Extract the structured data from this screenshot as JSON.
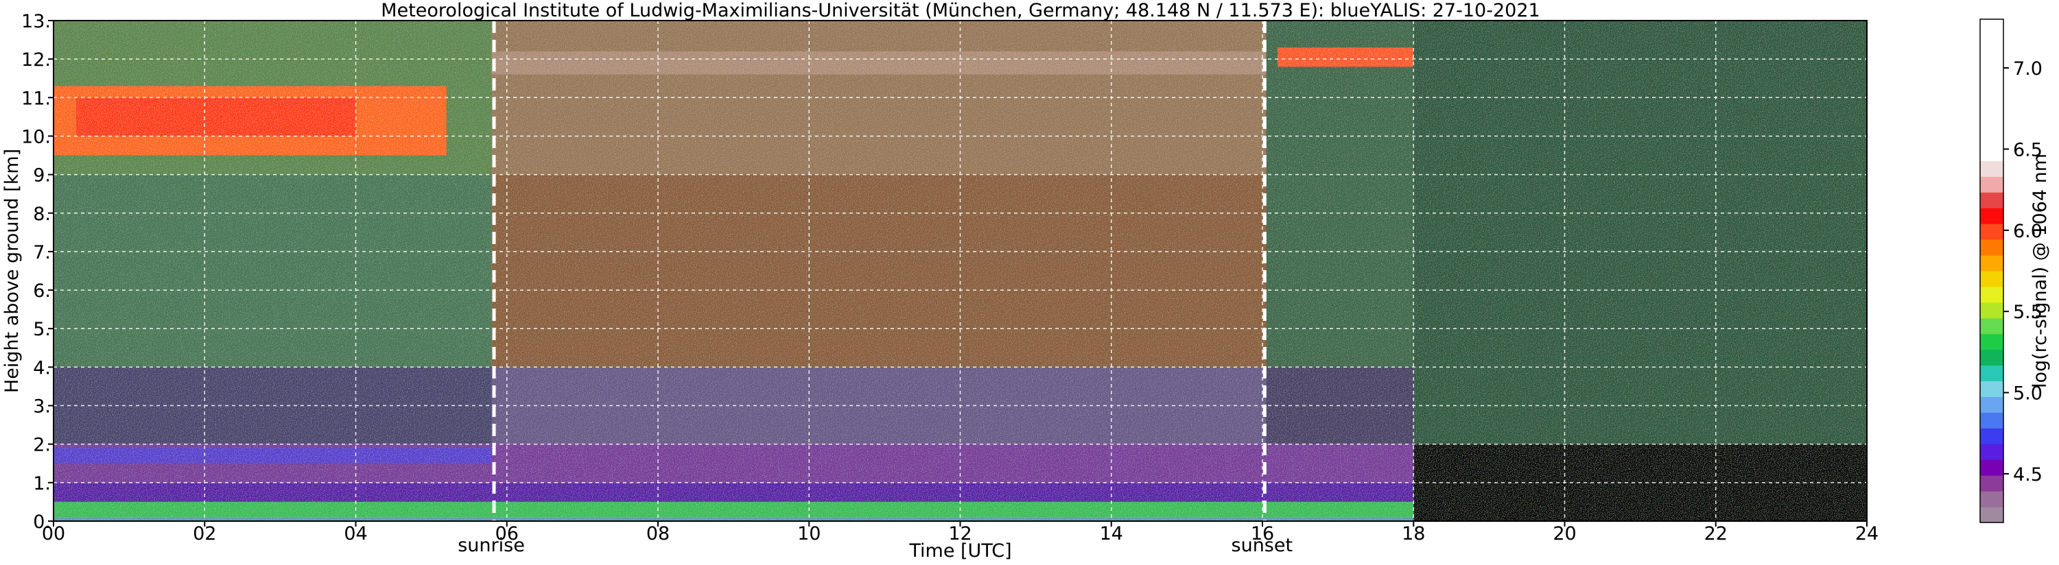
{
  "chart_data": {
    "type": "heatmap",
    "title": "Meteorological Institute of Ludwig-Maximilians-Universität (München, Germany; 48.148 N / 11.573 E):     blueYALIS: 27-10-2021",
    "xlabel": "Time [UTC]",
    "ylabel": "Height above ground [km]",
    "xlim": [
      0,
      24
    ],
    "ylim": [
      0,
      13
    ],
    "x_ticks": [
      0,
      2,
      4,
      6,
      8,
      10,
      12,
      14,
      16,
      18,
      20,
      22,
      24
    ],
    "x_tick_labels": [
      "00",
      "02",
      "04",
      "06",
      "08",
      "10",
      "12",
      "14",
      "16",
      "18",
      "20",
      "22",
      "24"
    ],
    "y_ticks": [
      0,
      1,
      2,
      3,
      4,
      5,
      6,
      7,
      8,
      9,
      10,
      11,
      12,
      13
    ],
    "y_tick_labels": [
      "0.",
      "1.",
      "2.",
      "3.",
      "4.",
      "5.",
      "6.",
      "7.",
      "8.",
      "9.",
      "10.",
      "11.",
      "12.",
      "13."
    ],
    "grid": true,
    "markers": [
      {
        "label": "sunrise",
        "x": 5.83
      },
      {
        "label": "sunset",
        "x": 16.03
      }
    ],
    "colorbar": {
      "label": "log(rc-signal) @ 1064 nm",
      "range": [
        4.2,
        7.3
      ],
      "ticks": [
        4.5,
        5.0,
        5.5,
        6.0,
        6.5,
        7.0
      ],
      "tick_labels": [
        "4.5",
        "5.0",
        "5.5",
        "6.0",
        "6.5",
        "7.0"
      ],
      "colors": [
        "#a08aa0",
        "#9a6e9a",
        "#8c3c98",
        "#7a00b4",
        "#5a1ee0",
        "#3c3cf0",
        "#4a78f0",
        "#6aa6f0",
        "#7ed2e6",
        "#28c8b4",
        "#10b45a",
        "#1ecd46",
        "#64dc50",
        "#b4e628",
        "#e6f01e",
        "#f5d200",
        "#ffa800",
        "#ff7800",
        "#ff4a1e",
        "#ff0a0a",
        "#e64646",
        "#f0aaaa",
        "#f0dcdc",
        "#ffffff"
      ]
    },
    "regions": [
      {
        "name": "night-background-early",
        "t": [
          0.0,
          5.8
        ],
        "h": [
          2.0,
          13.0
        ],
        "color": "#4a7a58"
      },
      {
        "name": "day-background",
        "t": [
          5.8,
          16.05
        ],
        "h": [
          2.0,
          13.0
        ],
        "color": "#8a6a48"
      },
      {
        "name": "night-background-late",
        "t": [
          16.05,
          24.0
        ],
        "h": [
          2.0,
          13.0
        ],
        "color": "#3e6a4c"
      },
      {
        "name": "upper-noise-night",
        "t": [
          0.0,
          5.8
        ],
        "h": [
          9.0,
          13.0
        ],
        "color": "#5f8a50"
      },
      {
        "name": "upper-noise-day",
        "t": [
          5.8,
          16.05
        ],
        "h": [
          9.0,
          13.0
        ],
        "color": "#9a7a5a"
      },
      {
        "name": "mid-noise-day",
        "t": [
          5.8,
          16.05
        ],
        "h": [
          4.0,
          9.0
        ],
        "color": "#8c5f3c"
      },
      {
        "name": "lower-free-troposphere-night",
        "t": [
          0.0,
          5.8
        ],
        "h": [
          2.0,
          4.0
        ],
        "color": "#4a4470"
      },
      {
        "name": "lower-free-troposphere-day",
        "t": [
          5.8,
          16.05
        ],
        "h": [
          2.0,
          4.0
        ],
        "color": "#6a5a8a"
      },
      {
        "name": "lower-free-troposphere-late",
        "t": [
          16.05,
          18.0
        ],
        "h": [
          2.0,
          4.0
        ],
        "color": "#4a4068"
      },
      {
        "name": "residual-layer",
        "t": [
          0.0,
          18.0
        ],
        "h": [
          1.0,
          2.0
        ],
        "color": "#7a3c9c"
      },
      {
        "name": "residual-layer-top",
        "t": [
          0.0,
          5.8
        ],
        "h": [
          1.5,
          1.9
        ],
        "color": "#5a40d0"
      },
      {
        "name": "boundary-layer",
        "t": [
          0.0,
          18.0
        ],
        "h": [
          0.5,
          1.0
        ],
        "color": "#5a1ea8"
      },
      {
        "name": "near-surface-aerosol",
        "t": [
          0.0,
          18.0
        ],
        "h": [
          0.1,
          0.5
        ],
        "color": "#3cc05a"
      },
      {
        "name": "surface",
        "t": [
          0.0,
          18.0
        ],
        "h": [
          0.0,
          0.1
        ],
        "color": "#5aa0b0"
      },
      {
        "name": "cirrus-layer-night",
        "t": [
          0.0,
          5.2
        ],
        "h": [
          9.5,
          11.3
        ],
        "color": "#ff6a1e"
      },
      {
        "name": "cirrus-layer-core",
        "t": [
          0.3,
          4.0
        ],
        "h": [
          10.0,
          11.0
        ],
        "color": "#ff3c14"
      },
      {
        "name": "cirrus-streak",
        "t": [
          16.2,
          18.0
        ],
        "h": [
          11.8,
          12.3
        ],
        "color": "#ff5a28"
      },
      {
        "name": "thin-cirrus-day",
        "t": [
          5.8,
          16.05
        ],
        "h": [
          11.6,
          12.2
        ],
        "color": "#b0907a"
      },
      {
        "name": "no-signal-after-18",
        "t": [
          18.0,
          24.0
        ],
        "h": [
          0.0,
          2.0
        ],
        "color": "#000000"
      },
      {
        "name": "weak-signal-after-18",
        "t": [
          18.0,
          24.0
        ],
        "h": [
          2.0,
          13.0
        ],
        "color": "#2e5a40"
      }
    ]
  }
}
